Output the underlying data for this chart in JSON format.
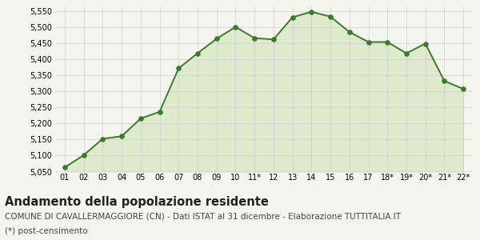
{
  "x_labels": [
    "01",
    "02",
    "03",
    "04",
    "05",
    "06",
    "07",
    "08",
    "09",
    "10",
    "11*",
    "12",
    "13",
    "14",
    "15",
    "16",
    "17",
    "18*",
    "19*",
    "20*",
    "21*",
    "22*"
  ],
  "y_values": [
    5063,
    5101,
    5152,
    5160,
    5215,
    5236,
    5371,
    5418,
    5463,
    5500,
    5465,
    5461,
    5530,
    5547,
    5532,
    5484,
    5453,
    5453,
    5418,
    5448,
    5332,
    5307
  ],
  "line_color": "#3a7a2a",
  "fill_color": "#ddeacc",
  "marker_color": "#3a7a2a",
  "bg_color": "#f5f5f0",
  "grid_color": "#cccccc",
  "ylim_min": 5050,
  "ylim_max": 5565,
  "yticks": [
    5050,
    5100,
    5150,
    5200,
    5250,
    5300,
    5350,
    5400,
    5450,
    5500,
    5550
  ],
  "title": "Andamento della popolazione residente",
  "subtitle": "COMUNE DI CAVALLERMAGGIORE (CN) - Dati ISTAT al 31 dicembre - Elaborazione TUTTITALIA.IT",
  "footnote": "(*) post-censimento",
  "title_fontsize": 10.5,
  "subtitle_fontsize": 7.5,
  "footnote_fontsize": 7.5,
  "tick_fontsize": 7.0
}
